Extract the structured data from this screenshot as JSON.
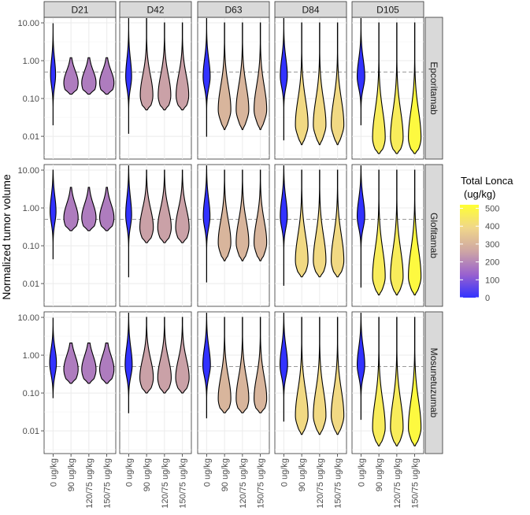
{
  "chart_data": {
    "type": "violin",
    "ylabel": "Normalized tumor volume",
    "y_scale": "log10",
    "ylim": [
      0.0025,
      14
    ],
    "y_ticks": [
      10,
      1,
      0.1,
      0.01
    ],
    "y_tick_labels": [
      "10.00",
      "1.00",
      "0.10",
      "0.01"
    ],
    "reference_line_y": 0.5,
    "columns": [
      "D21",
      "D42",
      "D63",
      "D84",
      "D105"
    ],
    "rows": [
      "Epcoritamab",
      "Glofitamab",
      "Mosunetuzumab"
    ],
    "categories": [
      "0 ug/kg",
      "90 ug/kg",
      "120/75 ug/kg",
      "150/75 ug/kg"
    ],
    "legend": {
      "title_line1": "Total Lonca",
      "title_line2": "(ug/kg)",
      "min": 0,
      "max": 520,
      "ticks": [
        0,
        100,
        200,
        300,
        400,
        500
      ],
      "colors": [
        "#3232ff",
        "#9a62ce",
        "#cea6a4",
        "#f0d68a",
        "#ffff33"
      ]
    },
    "panels": [
      {
        "row": "Epcoritamab",
        "col": "D21",
        "violins": [
          {
            "cat": "0 ug/kg",
            "lonca": 0,
            "min": 0.02,
            "max": 9.5,
            "mode": 0.42,
            "width": 0.3,
            "spread": 0.9
          },
          {
            "cat": "90 ug/kg",
            "lonca": 180,
            "min": 0.13,
            "max": 1.2,
            "mode": 0.26,
            "width": 0.85,
            "spread": 0.7
          },
          {
            "cat": "120/75 ug/kg",
            "lonca": 180,
            "min": 0.13,
            "max": 1.2,
            "mode": 0.26,
            "width": 0.85,
            "spread": 0.7
          },
          {
            "cat": "150/75 ug/kg",
            "lonca": 180,
            "min": 0.13,
            "max": 1.2,
            "mode": 0.26,
            "width": 0.85,
            "spread": 0.7
          }
        ]
      },
      {
        "row": "Epcoritamab",
        "col": "D42",
        "violins": [
          {
            "cat": "0 ug/kg",
            "lonca": 0,
            "min": 0.012,
            "max": 13,
            "mode": 0.38,
            "width": 0.35,
            "spread": 1.0
          },
          {
            "cat": "90 ug/kg",
            "lonca": 250,
            "min": 0.05,
            "max": 13,
            "mode": 0.12,
            "width": 0.75,
            "spread": 1.2
          },
          {
            "cat": "120/75 ug/kg",
            "lonca": 250,
            "min": 0.05,
            "max": 10,
            "mode": 0.12,
            "width": 0.75,
            "spread": 1.2
          },
          {
            "cat": "150/75 ug/kg",
            "lonca": 250,
            "min": 0.05,
            "max": 10,
            "mode": 0.12,
            "width": 0.75,
            "spread": 1.2
          }
        ]
      },
      {
        "row": "Epcoritamab",
        "col": "D63",
        "violins": [
          {
            "cat": "0 ug/kg",
            "lonca": 0,
            "min": 0.01,
            "max": 13,
            "mode": 0.38,
            "width": 0.42,
            "spread": 1.0
          },
          {
            "cat": "90 ug/kg",
            "lonca": 300,
            "min": 0.015,
            "max": 10,
            "mode": 0.05,
            "width": 0.75,
            "spread": 1.4
          },
          {
            "cat": "120/75 ug/kg",
            "lonca": 300,
            "min": 0.015,
            "max": 10,
            "mode": 0.05,
            "width": 0.75,
            "spread": 1.4
          },
          {
            "cat": "150/75 ug/kg",
            "lonca": 300,
            "min": 0.015,
            "max": 10,
            "mode": 0.05,
            "width": 0.75,
            "spread": 1.4
          }
        ]
      },
      {
        "row": "Epcoritamab",
        "col": "D84",
        "violins": [
          {
            "cat": "0 ug/kg",
            "lonca": 0,
            "min": 0.008,
            "max": 13,
            "mode": 0.4,
            "width": 0.42,
            "spread": 1.0
          },
          {
            "cat": "90 ug/kg",
            "lonca": 400,
            "min": 0.006,
            "max": 10,
            "mode": 0.02,
            "width": 0.75,
            "spread": 1.5
          },
          {
            "cat": "120/75 ug/kg",
            "lonca": 400,
            "min": 0.006,
            "max": 10,
            "mode": 0.02,
            "width": 0.75,
            "spread": 1.5
          },
          {
            "cat": "150/75 ug/kg",
            "lonca": 400,
            "min": 0.006,
            "max": 10,
            "mode": 0.02,
            "width": 0.75,
            "spread": 1.5
          }
        ]
      },
      {
        "row": "Epcoritamab",
        "col": "D105",
        "violins": [
          {
            "cat": "0 ug/kg",
            "lonca": 0,
            "min": 0.02,
            "max": 13,
            "mode": 0.38,
            "width": 0.45,
            "spread": 1.0
          },
          {
            "cat": "90 ug/kg",
            "lonca": 460,
            "min": 0.0035,
            "max": 10,
            "mode": 0.009,
            "width": 0.75,
            "spread": 1.6
          },
          {
            "cat": "120/75 ug/kg",
            "lonca": 460,
            "min": 0.0035,
            "max": 10,
            "mode": 0.009,
            "width": 0.75,
            "spread": 1.6
          },
          {
            "cat": "150/75 ug/kg",
            "lonca": 500,
            "min": 0.0035,
            "max": 10,
            "mode": 0.009,
            "width": 0.75,
            "spread": 1.6
          }
        ]
      },
      {
        "row": "Glofitamab",
        "col": "D21",
        "violins": [
          {
            "cat": "0 ug/kg",
            "lonca": 0,
            "min": 0.045,
            "max": 10,
            "mode": 0.8,
            "width": 0.35,
            "spread": 0.9
          },
          {
            "cat": "90 ug/kg",
            "lonca": 180,
            "min": 0.25,
            "max": 3.5,
            "mode": 0.55,
            "width": 0.85,
            "spread": 0.8
          },
          {
            "cat": "120/75 ug/kg",
            "lonca": 180,
            "min": 0.25,
            "max": 3.5,
            "mode": 0.55,
            "width": 0.85,
            "spread": 0.8
          },
          {
            "cat": "150/75 ug/kg",
            "lonca": 180,
            "min": 0.25,
            "max": 3.5,
            "mode": 0.55,
            "width": 0.85,
            "spread": 0.8
          }
        ]
      },
      {
        "row": "Glofitamab",
        "col": "D42",
        "violins": [
          {
            "cat": "0 ug/kg",
            "lonca": 0,
            "min": 0.015,
            "max": 13,
            "mode": 0.65,
            "width": 0.35,
            "spread": 1.0
          },
          {
            "cat": "90 ug/kg",
            "lonca": 250,
            "min": 0.12,
            "max": 10,
            "mode": 0.3,
            "width": 0.8,
            "spread": 1.1
          },
          {
            "cat": "120/75 ug/kg",
            "lonca": 250,
            "min": 0.12,
            "max": 10,
            "mode": 0.3,
            "width": 0.8,
            "spread": 1.1
          },
          {
            "cat": "150/75 ug/kg",
            "lonca": 250,
            "min": 0.12,
            "max": 10,
            "mode": 0.3,
            "width": 0.8,
            "spread": 1.1
          }
        ]
      },
      {
        "row": "Glofitamab",
        "col": "D63",
        "violins": [
          {
            "cat": "0 ug/kg",
            "lonca": 0,
            "min": 0.011,
            "max": 13,
            "mode": 0.6,
            "width": 0.4,
            "spread": 1.0
          },
          {
            "cat": "90 ug/kg",
            "lonca": 300,
            "min": 0.04,
            "max": 10,
            "mode": 0.12,
            "width": 0.75,
            "spread": 1.3
          },
          {
            "cat": "120/75 ug/kg",
            "lonca": 300,
            "min": 0.04,
            "max": 10,
            "mode": 0.12,
            "width": 0.75,
            "spread": 1.3
          },
          {
            "cat": "150/75 ug/kg",
            "lonca": 300,
            "min": 0.04,
            "max": 10,
            "mode": 0.12,
            "width": 0.75,
            "spread": 1.3
          }
        ]
      },
      {
        "row": "Glofitamab",
        "col": "D84",
        "violins": [
          {
            "cat": "0 ug/kg",
            "lonca": 0,
            "min": 0.009,
            "max": 13,
            "mode": 0.6,
            "width": 0.42,
            "spread": 1.0
          },
          {
            "cat": "90 ug/kg",
            "lonca": 400,
            "min": 0.015,
            "max": 10,
            "mode": 0.04,
            "width": 0.75,
            "spread": 1.5
          },
          {
            "cat": "120/75 ug/kg",
            "lonca": 400,
            "min": 0.015,
            "max": 10,
            "mode": 0.04,
            "width": 0.75,
            "spread": 1.5
          },
          {
            "cat": "150/75 ug/kg",
            "lonca": 400,
            "min": 0.015,
            "max": 10,
            "mode": 0.04,
            "width": 0.75,
            "spread": 1.5
          }
        ]
      },
      {
        "row": "Glofitamab",
        "col": "D105",
        "violins": [
          {
            "cat": "0 ug/kg",
            "lonca": 0,
            "min": 0.008,
            "max": 13,
            "mode": 0.6,
            "width": 0.45,
            "spread": 1.0
          },
          {
            "cat": "90 ug/kg",
            "lonca": 460,
            "min": 0.005,
            "max": 10,
            "mode": 0.015,
            "width": 0.75,
            "spread": 1.6
          },
          {
            "cat": "120/75 ug/kg",
            "lonca": 460,
            "min": 0.005,
            "max": 10,
            "mode": 0.015,
            "width": 0.75,
            "spread": 1.6
          },
          {
            "cat": "150/75 ug/kg",
            "lonca": 500,
            "min": 0.005,
            "max": 10,
            "mode": 0.015,
            "width": 0.75,
            "spread": 1.6
          }
        ]
      },
      {
        "row": "Mosunetuzumab",
        "col": "D21",
        "violins": [
          {
            "cat": "0 ug/kg",
            "lonca": 0,
            "min": 0.075,
            "max": 9.5,
            "mode": 0.62,
            "width": 0.4,
            "spread": 0.8
          },
          {
            "cat": "90 ug/kg",
            "lonca": 180,
            "min": 0.18,
            "max": 2.1,
            "mode": 0.42,
            "width": 0.85,
            "spread": 0.8
          },
          {
            "cat": "120/75 ug/kg",
            "lonca": 180,
            "min": 0.18,
            "max": 2.1,
            "mode": 0.42,
            "width": 0.85,
            "spread": 0.8
          },
          {
            "cat": "150/75 ug/kg",
            "lonca": 180,
            "min": 0.18,
            "max": 2.1,
            "mode": 0.42,
            "width": 0.85,
            "spread": 0.8
          }
        ]
      },
      {
        "row": "Mosunetuzumab",
        "col": "D42",
        "violins": [
          {
            "cat": "0 ug/kg",
            "lonca": 0,
            "min": 0.03,
            "max": 13,
            "mode": 0.55,
            "width": 0.42,
            "spread": 1.0
          },
          {
            "cat": "90 ug/kg",
            "lonca": 250,
            "min": 0.1,
            "max": 10,
            "mode": 0.25,
            "width": 0.8,
            "spread": 1.1
          },
          {
            "cat": "120/75 ug/kg",
            "lonca": 250,
            "min": 0.1,
            "max": 10,
            "mode": 0.25,
            "width": 0.8,
            "spread": 1.1
          },
          {
            "cat": "150/75 ug/kg",
            "lonca": 250,
            "min": 0.1,
            "max": 10,
            "mode": 0.25,
            "width": 0.8,
            "spread": 1.1
          }
        ]
      },
      {
        "row": "Mosunetuzumab",
        "col": "D63",
        "violins": [
          {
            "cat": "0 ug/kg",
            "lonca": 0,
            "min": 0.022,
            "max": 13,
            "mode": 0.55,
            "width": 0.45,
            "spread": 1.0
          },
          {
            "cat": "90 ug/kg",
            "lonca": 300,
            "min": 0.03,
            "max": 10,
            "mode": 0.07,
            "width": 0.75,
            "spread": 1.3
          },
          {
            "cat": "120/75 ug/kg",
            "lonca": 300,
            "min": 0.03,
            "max": 10,
            "mode": 0.07,
            "width": 0.75,
            "spread": 1.3
          },
          {
            "cat": "150/75 ug/kg",
            "lonca": 300,
            "min": 0.03,
            "max": 10,
            "mode": 0.07,
            "width": 0.75,
            "spread": 1.3
          }
        ]
      },
      {
        "row": "Mosunetuzumab",
        "col": "D84",
        "violins": [
          {
            "cat": "0 ug/kg",
            "lonca": 0,
            "min": 0.018,
            "max": 13,
            "mode": 0.55,
            "width": 0.45,
            "spread": 1.0
          },
          {
            "cat": "90 ug/kg",
            "lonca": 400,
            "min": 0.008,
            "max": 10,
            "mode": 0.025,
            "width": 0.75,
            "spread": 1.5
          },
          {
            "cat": "120/75 ug/kg",
            "lonca": 400,
            "min": 0.008,
            "max": 10,
            "mode": 0.025,
            "width": 0.75,
            "spread": 1.5
          },
          {
            "cat": "150/75 ug/kg",
            "lonca": 400,
            "min": 0.008,
            "max": 10,
            "mode": 0.025,
            "width": 0.75,
            "spread": 1.5
          }
        ]
      },
      {
        "row": "Mosunetuzumab",
        "col": "D105",
        "violins": [
          {
            "cat": "0 ug/kg",
            "lonca": 0,
            "min": 0.02,
            "max": 13,
            "mode": 0.55,
            "width": 0.45,
            "spread": 1.0
          },
          {
            "cat": "90 ug/kg",
            "lonca": 460,
            "min": 0.004,
            "max": 10,
            "mode": 0.012,
            "width": 0.75,
            "spread": 1.6
          },
          {
            "cat": "120/75 ug/kg",
            "lonca": 460,
            "min": 0.004,
            "max": 10,
            "mode": 0.012,
            "width": 0.75,
            "spread": 1.6
          },
          {
            "cat": "150/75 ug/kg",
            "lonca": 500,
            "min": 0.004,
            "max": 10,
            "mode": 0.012,
            "width": 0.75,
            "spread": 1.6
          }
        ]
      }
    ]
  }
}
